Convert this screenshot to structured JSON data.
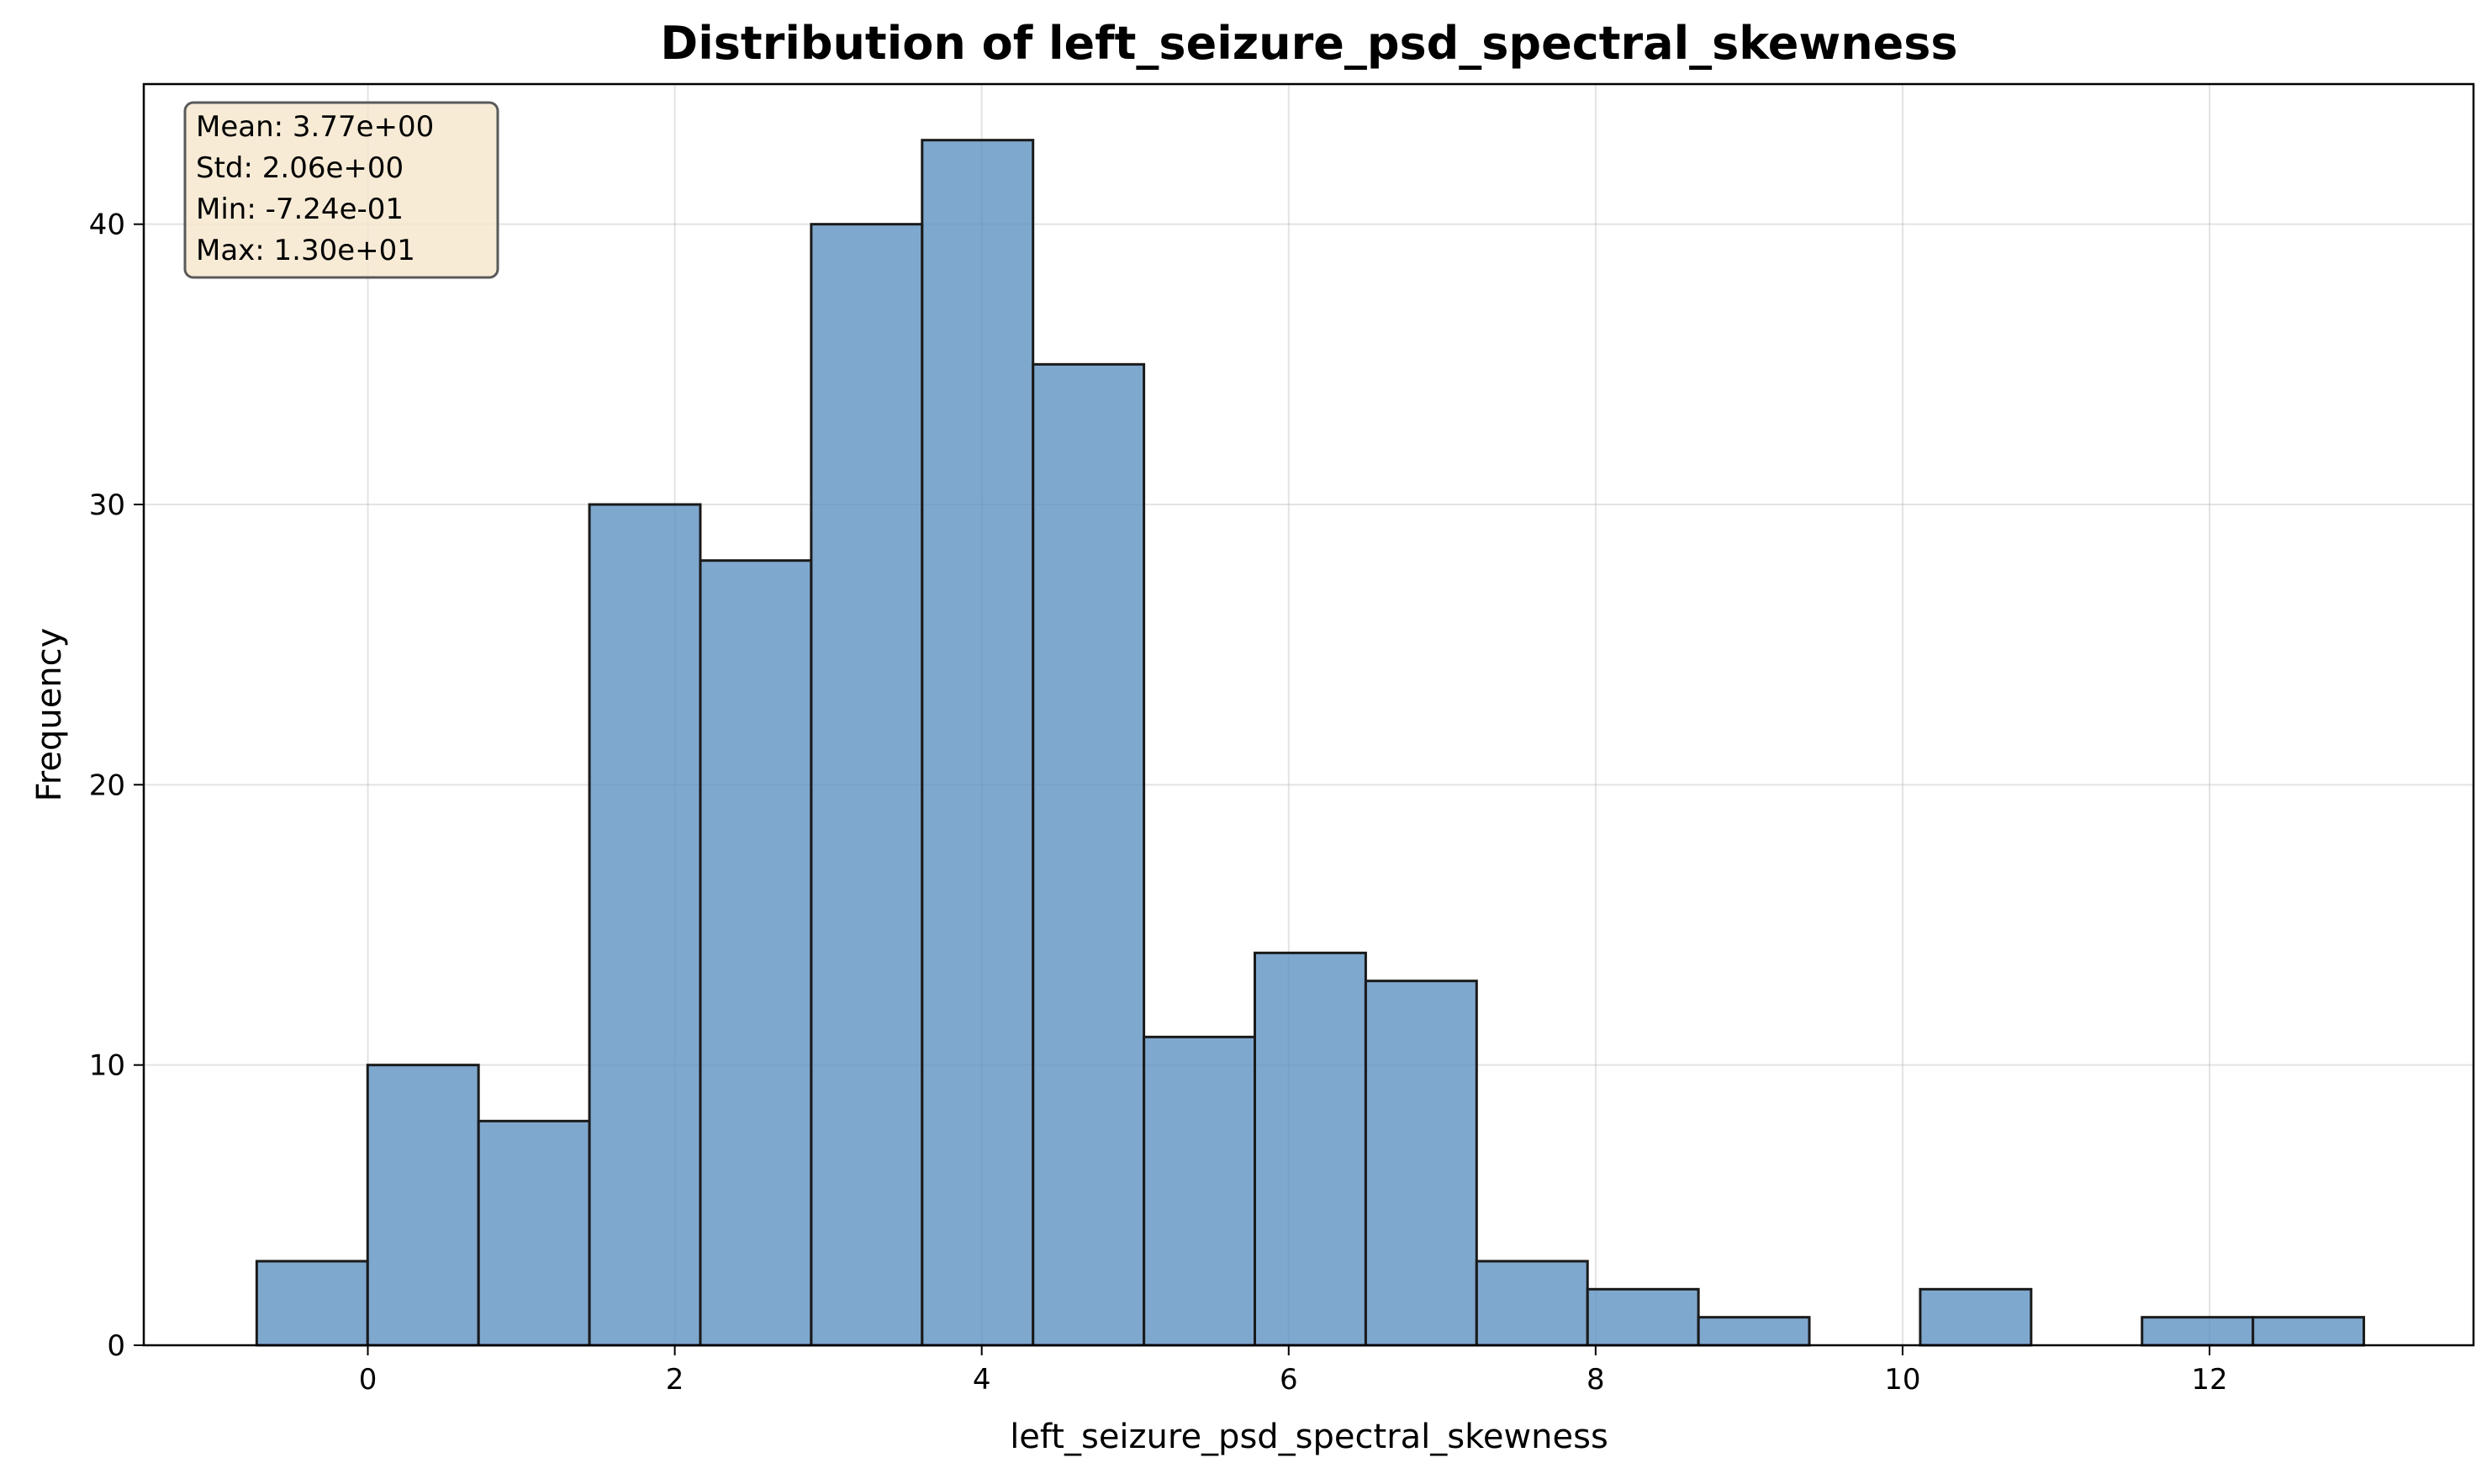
{
  "chart_data": {
    "type": "bar",
    "subtype": "histogram",
    "title": "Distribution of left_seizure_psd_spectral_skewness",
    "xlabel": "left_seizure_psd_spectral_skewness",
    "ylabel": "Frequency",
    "xlim": [
      -1.46,
      13.72
    ],
    "ylim": [
      0,
      45
    ],
    "xticks": [
      0,
      2,
      4,
      6,
      8,
      10,
      12
    ],
    "yticks": [
      0,
      10,
      20,
      30,
      40
    ],
    "grid": true,
    "bar_color": "#5b8fc0",
    "bar_opacity": 0.78,
    "edge_color": "#1a1a1a",
    "bin_edges": [
      -0.724,
      -0.0014,
      0.7212,
      1.4438,
      2.1664,
      2.889,
      3.6116,
      4.3342,
      5.0568,
      5.7794,
      6.502,
      7.2246,
      7.9472,
      8.6698,
      9.3924,
      10.115,
      10.8376,
      11.5602,
      12.2828,
      13.0054
    ],
    "counts": [
      3,
      10,
      8,
      30,
      28,
      40,
      43,
      35,
      11,
      14,
      13,
      3,
      2,
      1,
      0,
      2,
      0,
      1,
      1
    ],
    "stats_box": {
      "lines": [
        "Mean: 3.77e+00",
        "Std: 2.06e+00",
        "Min: -7.24e-01",
        "Max: 1.30e+01"
      ],
      "background": "#f5e6cc",
      "position": "top-left"
    }
  }
}
